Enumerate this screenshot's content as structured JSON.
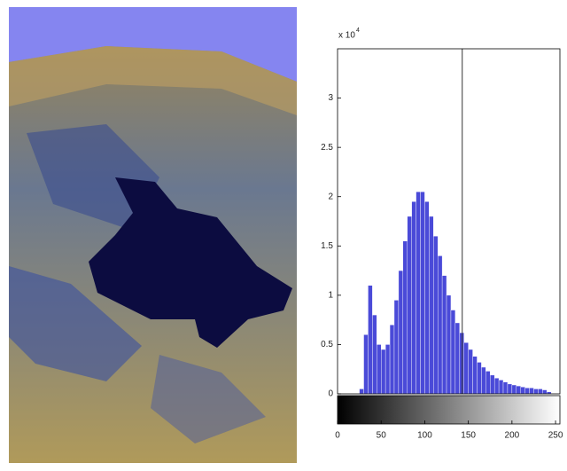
{
  "chart_data": {
    "type": "histogram",
    "y_exponent_base": "x 10",
    "y_exponent": "4",
    "bins": [
      0,
      5,
      10,
      15,
      20,
      25,
      30,
      35,
      40,
      45,
      50,
      55,
      60,
      65,
      70,
      75,
      80,
      85,
      90,
      95,
      100,
      105,
      110,
      115,
      120,
      125,
      130,
      135,
      140,
      145,
      150,
      155,
      160,
      165,
      170,
      175,
      180,
      185,
      190,
      195,
      200,
      205,
      210,
      215,
      220,
      225,
      230,
      235,
      240,
      245,
      250,
      255
    ],
    "values": [
      0,
      0,
      0,
      0,
      0,
      0.05,
      0.6,
      1.1,
      0.8,
      0.5,
      0.45,
      0.5,
      0.7,
      0.95,
      1.25,
      1.55,
      1.8,
      1.95,
      2.05,
      2.05,
      1.95,
      1.8,
      1.6,
      1.4,
      1.2,
      1.0,
      0.85,
      0.72,
      0.62,
      0.52,
      0.45,
      0.38,
      0.32,
      0.27,
      0.23,
      0.19,
      0.16,
      0.14,
      0.12,
      0.1,
      0.09,
      0.08,
      0.07,
      0.06,
      0.06,
      0.05,
      0.05,
      0.04,
      0.02,
      0,
      0
    ],
    "color": "#4a4ad8",
    "vline_x": 143,
    "xlim": [
      0,
      255
    ],
    "xticks": [
      0,
      50,
      100,
      150,
      200,
      250
    ],
    "ylim": [
      0,
      3.5
    ],
    "yticks": [
      0,
      0.5,
      1,
      1.5,
      2,
      2.5,
      3
    ]
  }
}
